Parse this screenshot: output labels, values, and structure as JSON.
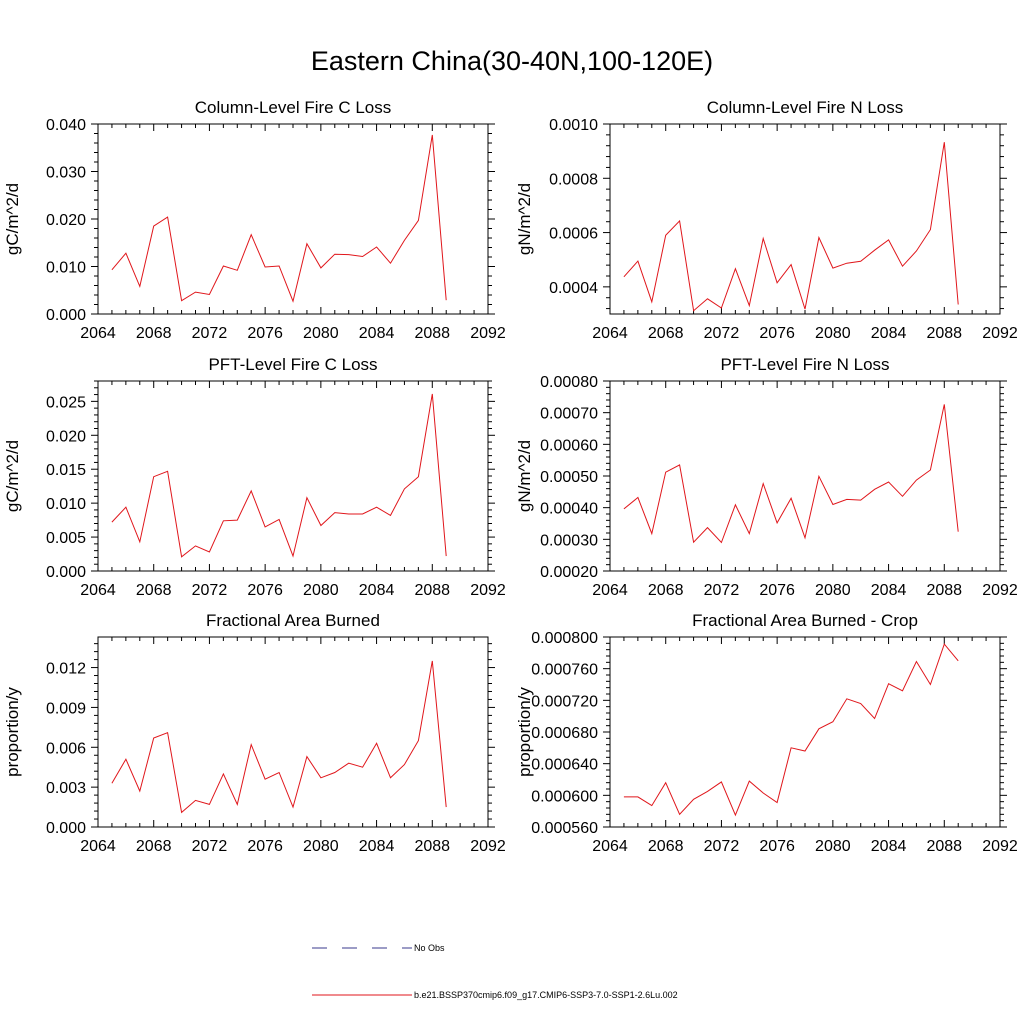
{
  "title": "Eastern China(30-40N,100-120E)",
  "legend": [
    {
      "label": "No Obs",
      "style": "dashed",
      "color": "#3a3a8c"
    },
    {
      "label": "b.e21.BSSP370cmip6.f09_g17.CMIP6-SSP3-7.0-SSP1-2.6Lu.002",
      "style": "solid",
      "color": "#e0161b"
    }
  ],
  "chart_data": [
    {
      "type": "line",
      "title": "Column-Level Fire C Loss",
      "ylabel": "gC/m^2/d",
      "xlim": [
        2064,
        2092
      ],
      "xticks": [
        "2064",
        "2068",
        "2072",
        "2076",
        "2080",
        "2084",
        "2088",
        "2092"
      ],
      "ylim": [
        0.0,
        0.04
      ],
      "yticks": [
        "0.000",
        "0.010",
        "0.020",
        "0.030",
        "0.040"
      ],
      "ytick_values": [
        0.0,
        0.01,
        0.02,
        0.03,
        0.04
      ],
      "color": "#e0161b",
      "x": [
        2065,
        2066,
        2067,
        2068,
        2069,
        2070,
        2071,
        2072,
        2073,
        2074,
        2075,
        2076,
        2077,
        2078,
        2079,
        2080,
        2081,
        2082,
        2083,
        2084,
        2085,
        2086,
        2087,
        2088,
        2089
      ],
      "y": [
        0.0093,
        0.0128,
        0.0058,
        0.0185,
        0.0204,
        0.0028,
        0.0046,
        0.0041,
        0.0101,
        0.0092,
        0.0167,
        0.0099,
        0.0101,
        0.0027,
        0.0148,
        0.0097,
        0.0126,
        0.0125,
        0.0121,
        0.0141,
        0.0107,
        0.0155,
        0.0197,
        0.0377,
        0.0029
      ]
    },
    {
      "type": "line",
      "title": "Column-Level Fire N Loss",
      "ylabel": "gN/m^2/d",
      "xlim": [
        2064,
        2092
      ],
      "xticks": [
        "2064",
        "2068",
        "2072",
        "2076",
        "2080",
        "2084",
        "2088",
        "2092"
      ],
      "ylim": [
        0.0003,
        0.001
      ],
      "yticks": [
        "0.0004",
        "0.0006",
        "0.0008",
        "0.0010"
      ],
      "ytick_values": [
        0.0004,
        0.0006,
        0.0008,
        0.001
      ],
      "color": "#e0161b",
      "x": [
        2065,
        2066,
        2067,
        2068,
        2069,
        2070,
        2071,
        2072,
        2073,
        2074,
        2075,
        2076,
        2077,
        2078,
        2079,
        2080,
        2081,
        2082,
        2083,
        2084,
        2085,
        2086,
        2087,
        2088,
        2089
      ],
      "y": [
        0.000437,
        0.000495,
        0.000345,
        0.00059,
        0.000643,
        0.000312,
        0.000356,
        0.000322,
        0.000467,
        0.000331,
        0.000578,
        0.000415,
        0.000482,
        0.000318,
        0.000582,
        0.000469,
        0.000487,
        0.000494,
        0.000535,
        0.000573,
        0.000476,
        0.000532,
        0.000611,
        0.000933,
        0.000335
      ]
    },
    {
      "type": "line",
      "title": "PFT-Level Fire C Loss",
      "ylabel": "gC/m^2/d",
      "xlim": [
        2064,
        2092
      ],
      "xticks": [
        "2064",
        "2068",
        "2072",
        "2076",
        "2080",
        "2084",
        "2088",
        "2092"
      ],
      "ylim": [
        0.0,
        0.028
      ],
      "yticks": [
        "0.000",
        "0.005",
        "0.010",
        "0.015",
        "0.020",
        "0.025"
      ],
      "ytick_values": [
        0.0,
        0.005,
        0.01,
        0.015,
        0.02,
        0.025
      ],
      "color": "#e0161b",
      "x": [
        2065,
        2066,
        2067,
        2068,
        2069,
        2070,
        2071,
        2072,
        2073,
        2074,
        2075,
        2076,
        2077,
        2078,
        2079,
        2080,
        2081,
        2082,
        2083,
        2084,
        2085,
        2086,
        2087,
        2088,
        2089
      ],
      "y": [
        0.0072,
        0.0094,
        0.0043,
        0.0139,
        0.0147,
        0.0021,
        0.0037,
        0.0028,
        0.0074,
        0.0075,
        0.0118,
        0.0065,
        0.0076,
        0.0022,
        0.0108,
        0.0067,
        0.0086,
        0.0084,
        0.0084,
        0.0094,
        0.0082,
        0.0121,
        0.0139,
        0.0261,
        0.0022
      ]
    },
    {
      "type": "line",
      "title": "PFT-Level Fire N Loss",
      "ylabel": "gN/m^2/d",
      "xlim": [
        2064,
        2092
      ],
      "xticks": [
        "2064",
        "2068",
        "2072",
        "2076",
        "2080",
        "2084",
        "2088",
        "2092"
      ],
      "ylim": [
        0.0002,
        0.0008
      ],
      "yticks": [
        "0.00020",
        "0.00030",
        "0.00040",
        "0.00050",
        "0.00060",
        "0.00070",
        "0.00080"
      ],
      "ytick_values": [
        0.0002,
        0.0003,
        0.0004,
        0.0005,
        0.0006,
        0.0007,
        0.0008
      ],
      "color": "#e0161b",
      "x": [
        2065,
        2066,
        2067,
        2068,
        2069,
        2070,
        2071,
        2072,
        2073,
        2074,
        2075,
        2076,
        2077,
        2078,
        2079,
        2080,
        2081,
        2082,
        2083,
        2084,
        2085,
        2086,
        2087,
        2088,
        2089
      ],
      "y": [
        0.000396,
        0.000432,
        0.000318,
        0.000512,
        0.000535,
        0.000291,
        0.000337,
        0.00029,
        0.000409,
        0.000318,
        0.000476,
        0.000352,
        0.00043,
        0.000305,
        0.000499,
        0.00041,
        0.000426,
        0.000424,
        0.000458,
        0.000481,
        0.000436,
        0.000487,
        0.000519,
        0.000726,
        0.000324
      ]
    },
    {
      "type": "line",
      "title": "Fractional Area Burned",
      "ylabel": "proportion/y",
      "xlim": [
        2064,
        2092
      ],
      "xticks": [
        "2064",
        "2068",
        "2072",
        "2076",
        "2080",
        "2084",
        "2088",
        "2092"
      ],
      "ylim": [
        0.0,
        0.0143
      ],
      "yticks": [
        "0.000",
        "0.003",
        "0.006",
        "0.009",
        "0.012"
      ],
      "ytick_values": [
        0.0,
        0.003,
        0.006,
        0.009,
        0.012
      ],
      "color": "#e0161b",
      "x": [
        2065,
        2066,
        2067,
        2068,
        2069,
        2070,
        2071,
        2072,
        2073,
        2074,
        2075,
        2076,
        2077,
        2078,
        2079,
        2080,
        2081,
        2082,
        2083,
        2084,
        2085,
        2086,
        2087,
        2088,
        2089
      ],
      "y": [
        0.0033,
        0.0051,
        0.0027,
        0.0067,
        0.0071,
        0.0011,
        0.002,
        0.0017,
        0.004,
        0.0017,
        0.0062,
        0.0036,
        0.0041,
        0.0015,
        0.0053,
        0.0037,
        0.0041,
        0.0048,
        0.0045,
        0.0063,
        0.0037,
        0.0047,
        0.0065,
        0.0125,
        0.0015
      ]
    },
    {
      "type": "line",
      "title": "Fractional Area Burned - Crop",
      "ylabel": "proportion/y",
      "xlim": [
        2064,
        2092
      ],
      "xticks": [
        "2064",
        "2068",
        "2072",
        "2076",
        "2080",
        "2084",
        "2088",
        "2092"
      ],
      "ylim": [
        0.00056,
        0.0008
      ],
      "yticks": [
        "0.000560",
        "0.000600",
        "0.000640",
        "0.000680",
        "0.000720",
        "0.000760",
        "0.000800"
      ],
      "ytick_values": [
        0.00056,
        0.0006,
        0.00064,
        0.00068,
        0.00072,
        0.00076,
        0.0008
      ],
      "color": "#e0161b",
      "x": [
        2065,
        2066,
        2067,
        2068,
        2069,
        2070,
        2071,
        2072,
        2073,
        2074,
        2075,
        2076,
        2077,
        2078,
        2079,
        2080,
        2081,
        2082,
        2083,
        2084,
        2085,
        2086,
        2087,
        2088,
        2089
      ],
      "y": [
        0.000598,
        0.000598,
        0.000587,
        0.000616,
        0.000576,
        0.000595,
        0.000605,
        0.000617,
        0.000575,
        0.000618,
        0.000603,
        0.000591,
        0.00066,
        0.000656,
        0.000684,
        0.000693,
        0.000722,
        0.000716,
        0.000697,
        0.000741,
        0.000732,
        0.000769,
        0.00074,
        0.000791,
        0.00077
      ]
    }
  ]
}
